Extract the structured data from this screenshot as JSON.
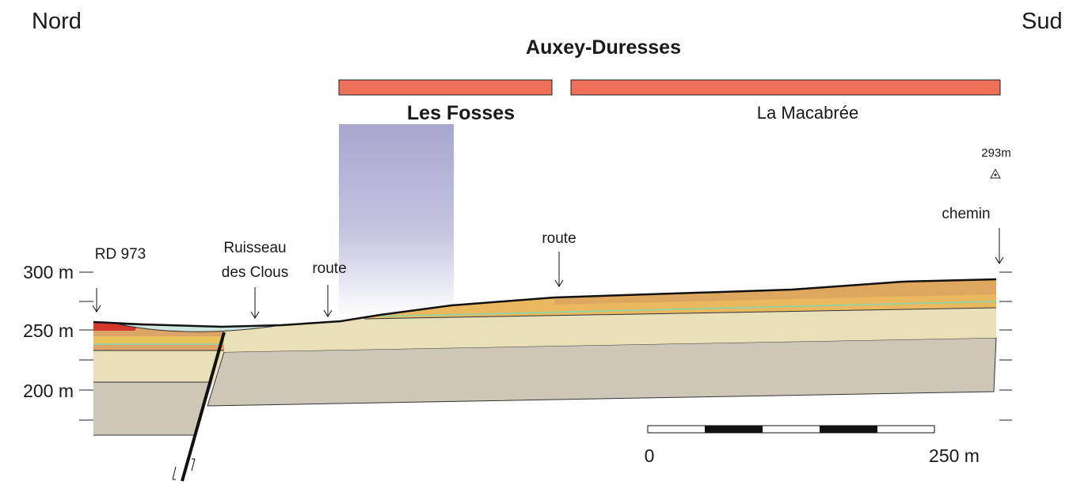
{
  "header": {
    "left": "Nord",
    "right": "Sud",
    "title": "Auxey-Duresses"
  },
  "parcels": [
    "Les Fosses",
    "La Macabrée"
  ],
  "summit": "293m",
  "landmarks": {
    "chemin": "chemin",
    "route_east": "route",
    "rd": "RD 973",
    "ruisseau": [
      "Ruisseau",
      "des Clous"
    ],
    "route_west": "route"
  },
  "elevation_axis": [
    "300 m",
    "250 m",
    "200 m"
  ],
  "scale": [
    "0",
    "250 m"
  ]
}
